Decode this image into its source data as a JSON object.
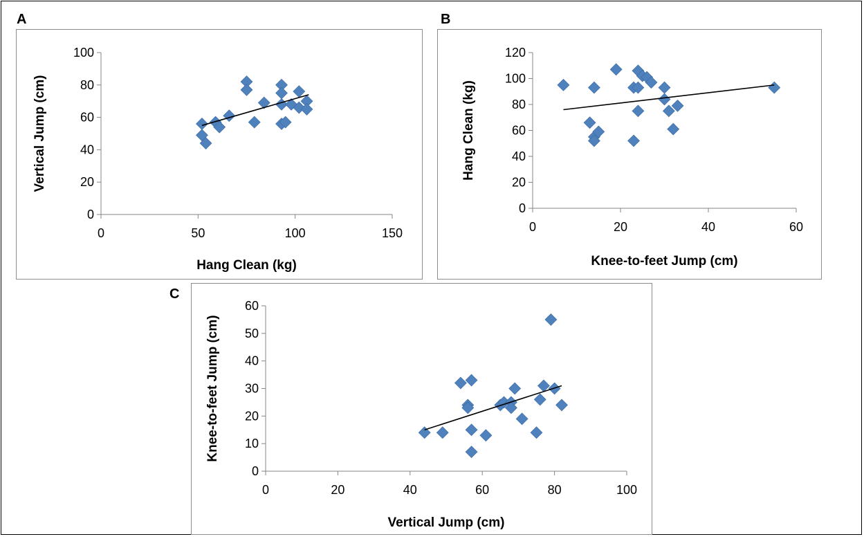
{
  "chart_data": [
    {
      "panel_label": "A",
      "type": "scatter",
      "xlabel": "Hang Clean (kg)",
      "ylabel": "Vertical Jump (cm)",
      "xlim": [
        0,
        150
      ],
      "ylim": [
        0,
        100
      ],
      "xticks": [
        0,
        50,
        100,
        150
      ],
      "yticks": [
        0,
        20,
        40,
        60,
        80,
        100
      ],
      "marker_color": "#4f81bd",
      "trendline": {
        "x": [
          52,
          107
        ],
        "y": [
          55,
          74
        ]
      },
      "points": [
        {
          "x": 52,
          "y": 56
        },
        {
          "x": 52,
          "y": 49
        },
        {
          "x": 54,
          "y": 44
        },
        {
          "x": 59,
          "y": 57
        },
        {
          "x": 61,
          "y": 54
        },
        {
          "x": 66,
          "y": 61
        },
        {
          "x": 75,
          "y": 82
        },
        {
          "x": 75,
          "y": 77
        },
        {
          "x": 79,
          "y": 57
        },
        {
          "x": 84,
          "y": 69
        },
        {
          "x": 93,
          "y": 80
        },
        {
          "x": 93,
          "y": 75
        },
        {
          "x": 93,
          "y": 68
        },
        {
          "x": 93,
          "y": 56
        },
        {
          "x": 95,
          "y": 57
        },
        {
          "x": 98,
          "y": 68
        },
        {
          "x": 102,
          "y": 76
        },
        {
          "x": 102,
          "y": 66
        },
        {
          "x": 106,
          "y": 70
        },
        {
          "x": 106,
          "y": 65
        }
      ]
    },
    {
      "panel_label": "B",
      "type": "scatter",
      "xlabel": "Knee-to-feet Jump (cm)",
      "ylabel": "Hang Clean (kg)",
      "xlim": [
        0,
        60
      ],
      "ylim": [
        0,
        120
      ],
      "xticks": [
        0,
        20,
        40,
        60
      ],
      "yticks": [
        0,
        20,
        40,
        60,
        80,
        100,
        120
      ],
      "marker_color": "#4f81bd",
      "trendline": {
        "x": [
          7,
          55
        ],
        "y": [
          76,
          95
        ]
      },
      "points": [
        {
          "x": 7,
          "y": 95
        },
        {
          "x": 13,
          "y": 66
        },
        {
          "x": 14,
          "y": 93
        },
        {
          "x": 14,
          "y": 55
        },
        {
          "x": 14,
          "y": 52
        },
        {
          "x": 15,
          "y": 59
        },
        {
          "x": 19,
          "y": 107
        },
        {
          "x": 23,
          "y": 93
        },
        {
          "x": 23,
          "y": 52
        },
        {
          "x": 24,
          "y": 106
        },
        {
          "x": 24,
          "y": 93
        },
        {
          "x": 24,
          "y": 75
        },
        {
          "x": 25,
          "y": 102
        },
        {
          "x": 26,
          "y": 101
        },
        {
          "x": 27,
          "y": 97
        },
        {
          "x": 30,
          "y": 93
        },
        {
          "x": 30,
          "y": 84
        },
        {
          "x": 31,
          "y": 75
        },
        {
          "x": 32,
          "y": 61
        },
        {
          "x": 33,
          "y": 79
        },
        {
          "x": 55,
          "y": 93
        }
      ]
    },
    {
      "panel_label": "C",
      "type": "scatter",
      "xlabel": "Vertical Jump (cm)",
      "ylabel": "Knee-to-feet Jump (cm)",
      "xlim": [
        0,
        100
      ],
      "ylim": [
        0,
        60
      ],
      "xticks": [
        0,
        20,
        40,
        60,
        80,
        100
      ],
      "yticks": [
        0,
        10,
        20,
        30,
        40,
        50,
        60
      ],
      "marker_color": "#4f81bd",
      "trendline": {
        "x": [
          44,
          82
        ],
        "y": [
          15,
          31
        ]
      },
      "points": [
        {
          "x": 44,
          "y": 14
        },
        {
          "x": 49,
          "y": 14
        },
        {
          "x": 54,
          "y": 32
        },
        {
          "x": 56,
          "y": 24
        },
        {
          "x": 56,
          "y": 23
        },
        {
          "x": 57,
          "y": 33
        },
        {
          "x": 57,
          "y": 15
        },
        {
          "x": 57,
          "y": 7
        },
        {
          "x": 61,
          "y": 13
        },
        {
          "x": 65,
          "y": 24
        },
        {
          "x": 66,
          "y": 25
        },
        {
          "x": 68,
          "y": 25
        },
        {
          "x": 68,
          "y": 23
        },
        {
          "x": 69,
          "y": 30
        },
        {
          "x": 71,
          "y": 19
        },
        {
          "x": 75,
          "y": 14
        },
        {
          "x": 76,
          "y": 26
        },
        {
          "x": 77,
          "y": 31
        },
        {
          "x": 79,
          "y": 55
        },
        {
          "x": 80,
          "y": 30
        },
        {
          "x": 82,
          "y": 24
        }
      ]
    }
  ]
}
